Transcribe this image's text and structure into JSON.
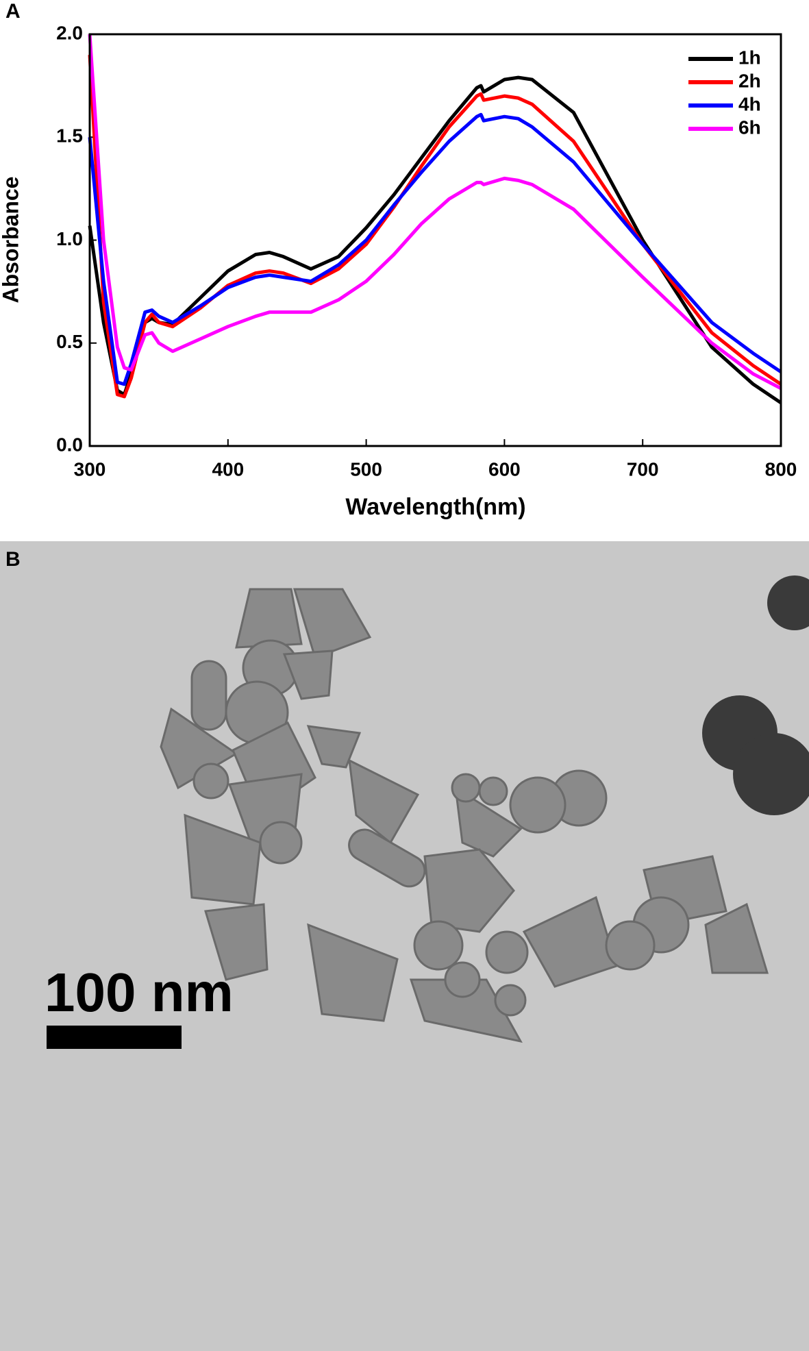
{
  "chart_data": {
    "type": "line",
    "panel_label": "A",
    "xlabel": "Wavelength(nm)",
    "ylabel": "Absorbance",
    "x": [
      300,
      310,
      320,
      325,
      330,
      340,
      345,
      350,
      360,
      380,
      400,
      420,
      430,
      440,
      460,
      480,
      500,
      520,
      540,
      560,
      580,
      583,
      585,
      600,
      610,
      620,
      650,
      700,
      750,
      780,
      800
    ],
    "series": [
      {
        "name": "1h",
        "color": "#000000",
        "values": [
          1.07,
          0.6,
          0.27,
          0.25,
          0.35,
          0.6,
          0.62,
          0.6,
          0.59,
          0.72,
          0.85,
          0.93,
          0.94,
          0.92,
          0.86,
          0.92,
          1.06,
          1.22,
          1.4,
          1.58,
          1.74,
          1.75,
          1.72,
          1.78,
          1.79,
          1.78,
          1.62,
          1.0,
          0.48,
          0.3,
          0.21
        ]
      },
      {
        "name": "2h",
        "color": "#ff0000",
        "values": [
          1.9,
          0.7,
          0.25,
          0.24,
          0.33,
          0.6,
          0.64,
          0.6,
          0.58,
          0.67,
          0.78,
          0.84,
          0.85,
          0.84,
          0.79,
          0.86,
          0.98,
          1.16,
          1.36,
          1.55,
          1.7,
          1.71,
          1.68,
          1.7,
          1.69,
          1.66,
          1.48,
          0.98,
          0.55,
          0.39,
          0.3
        ]
      },
      {
        "name": "4h",
        "color": "#0000ff",
        "values": [
          1.5,
          0.8,
          0.31,
          0.3,
          0.4,
          0.65,
          0.66,
          0.63,
          0.6,
          0.68,
          0.77,
          0.82,
          0.83,
          0.82,
          0.8,
          0.88,
          1.0,
          1.17,
          1.33,
          1.48,
          1.6,
          1.61,
          1.58,
          1.6,
          1.59,
          1.55,
          1.38,
          0.98,
          0.6,
          0.45,
          0.36
        ]
      },
      {
        "name": "6h",
        "color": "#ff00ff",
        "values": [
          2.0,
          1.0,
          0.48,
          0.38,
          0.37,
          0.54,
          0.55,
          0.5,
          0.46,
          0.52,
          0.58,
          0.63,
          0.65,
          0.65,
          0.65,
          0.71,
          0.8,
          0.93,
          1.08,
          1.2,
          1.28,
          1.28,
          1.27,
          1.3,
          1.29,
          1.27,
          1.15,
          0.82,
          0.5,
          0.35,
          0.28
        ]
      }
    ],
    "xlim": [
      300,
      800
    ],
    "xticks": [
      300,
      400,
      500,
      600,
      700,
      800
    ],
    "ylim": [
      0,
      2
    ],
    "yticks": [
      {
        "value": 0,
        "label": "0.0"
      },
      {
        "value": 0.5,
        "label": "0.5"
      },
      {
        "value": 1,
        "label": "1.0"
      },
      {
        "value": 1.5,
        "label": "1.5"
      },
      {
        "value": 2,
        "label": "2.0"
      }
    ],
    "legend": "upper right"
  },
  "image": {
    "panel_label": "B",
    "scale_bar": "100 nm"
  }
}
